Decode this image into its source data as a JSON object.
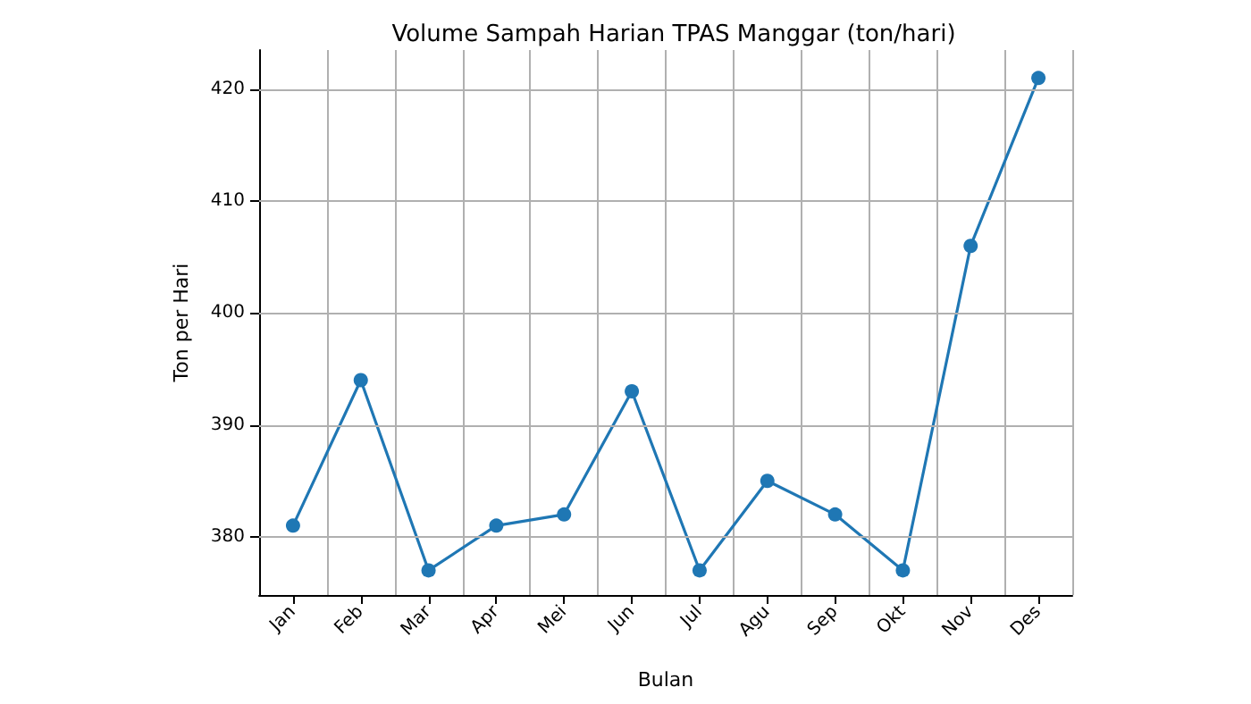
{
  "chart_data": {
    "type": "line",
    "title": "Volume Sampah Harian TPAS Manggar (ton/hari)",
    "xlabel": "Bulan",
    "ylabel": "Ton per Hari",
    "categories": [
      "Jan",
      "Feb",
      "Mar",
      "Apr",
      "Mei",
      "Jun",
      "Jul",
      "Agu",
      "Sep",
      "Okt",
      "Nov",
      "Des"
    ],
    "series": [
      {
        "color": "#1f77b4",
        "values": [
          381,
          394,
          377,
          381,
          382,
          393,
          377,
          385,
          382,
          377,
          406,
          421
        ]
      }
    ],
    "ylim": [
      374.8,
      423.5
    ],
    "yticks": [
      380,
      390,
      400,
      410,
      420
    ],
    "grid": true,
    "marker": "circle",
    "line_style": "solid"
  }
}
